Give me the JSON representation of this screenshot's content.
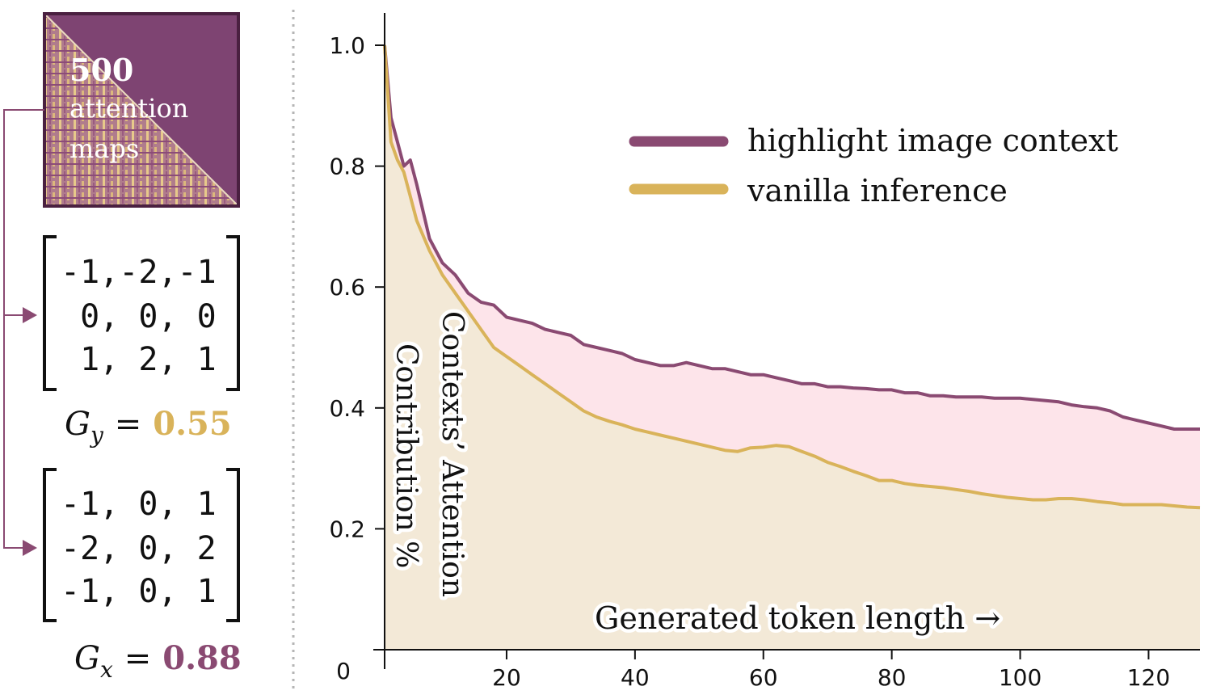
{
  "left_panel": {
    "attention_box": {
      "count": "500",
      "line1": "attention",
      "line2": "maps"
    },
    "kernel_y": {
      "rows": [
        "-1,-2,-1",
        " 0, 0, 0",
        " 1, 2, 1"
      ],
      "label_main": "G",
      "label_sub": "y",
      "equals": "=",
      "value": "0.55"
    },
    "kernel_x": {
      "rows": [
        "-1, 0, 1",
        "-2, 0, 2",
        "-1, 0, 1"
      ],
      "label_main": "G",
      "label_sub": "x",
      "equals": "=",
      "value": "0.88"
    }
  },
  "colors": {
    "purple": "#8a4a72",
    "gold": "#d9b35a",
    "pink_fill": "#fde4ea",
    "beige_fill": "#f3e9d7",
    "box_fill": "#7e4472"
  },
  "chart_data": {
    "type": "area",
    "title": "",
    "ylabel_line1": "Contexts’ Attention",
    "ylabel_line2": "Contribution %",
    "xlabel": "Generated token length →",
    "x_range": [
      1,
      128
    ],
    "ylim": [
      0,
      1.0
    ],
    "x_ticks": [
      20,
      40,
      60,
      80,
      100,
      120
    ],
    "y_ticks": [
      {
        "value": 0,
        "label": "0"
      },
      {
        "value": 0.2,
        "label": "0.2"
      },
      {
        "value": 0.4,
        "label": "0.4"
      },
      {
        "value": 0.6,
        "label": "0.6"
      },
      {
        "value": 0.8,
        "label": "0.8"
      },
      {
        "value": 1.0,
        "label": "1.0"
      }
    ],
    "legend_position": "top-right",
    "grid": false,
    "series": [
      {
        "name": "highlight image context",
        "x": [
          1,
          2,
          3,
          4,
          5,
          6,
          8,
          10,
          12,
          14,
          16,
          18,
          20,
          22,
          24,
          26,
          28,
          30,
          32,
          34,
          36,
          38,
          40,
          42,
          44,
          46,
          48,
          50,
          52,
          54,
          56,
          58,
          60,
          62,
          64,
          66,
          68,
          70,
          72,
          74,
          76,
          78,
          80,
          82,
          84,
          86,
          88,
          90,
          92,
          94,
          96,
          98,
          100,
          102,
          104,
          106,
          108,
          110,
          112,
          114,
          116,
          118,
          120,
          122,
          124,
          126,
          128
        ],
        "values": [
          1.0,
          0.88,
          0.84,
          0.8,
          0.81,
          0.77,
          0.68,
          0.64,
          0.62,
          0.59,
          0.575,
          0.57,
          0.55,
          0.545,
          0.54,
          0.53,
          0.525,
          0.52,
          0.505,
          0.5,
          0.495,
          0.49,
          0.48,
          0.475,
          0.47,
          0.47,
          0.475,
          0.47,
          0.465,
          0.465,
          0.46,
          0.455,
          0.455,
          0.45,
          0.445,
          0.44,
          0.44,
          0.435,
          0.435,
          0.433,
          0.432,
          0.43,
          0.43,
          0.425,
          0.425,
          0.42,
          0.42,
          0.418,
          0.418,
          0.418,
          0.416,
          0.416,
          0.416,
          0.414,
          0.412,
          0.41,
          0.405,
          0.402,
          0.4,
          0.395,
          0.385,
          0.38,
          0.375,
          0.37,
          0.365,
          0.365,
          0.365
        ]
      },
      {
        "name": "vanilla inference",
        "x": [
          1,
          2,
          3,
          4,
          5,
          6,
          8,
          10,
          12,
          14,
          16,
          18,
          20,
          22,
          24,
          26,
          28,
          30,
          32,
          34,
          36,
          38,
          40,
          42,
          44,
          46,
          48,
          50,
          52,
          54,
          56,
          58,
          60,
          62,
          64,
          66,
          68,
          70,
          72,
          74,
          76,
          78,
          80,
          82,
          84,
          86,
          88,
          90,
          92,
          94,
          96,
          98,
          100,
          102,
          104,
          106,
          108,
          110,
          112,
          114,
          116,
          118,
          120,
          122,
          124,
          126,
          128
        ],
        "values": [
          1.0,
          0.84,
          0.81,
          0.79,
          0.75,
          0.71,
          0.66,
          0.62,
          0.59,
          0.56,
          0.53,
          0.5,
          0.485,
          0.47,
          0.455,
          0.44,
          0.425,
          0.41,
          0.395,
          0.385,
          0.378,
          0.372,
          0.365,
          0.36,
          0.355,
          0.35,
          0.345,
          0.34,
          0.335,
          0.33,
          0.328,
          0.334,
          0.335,
          0.338,
          0.336,
          0.328,
          0.32,
          0.31,
          0.303,
          0.295,
          0.288,
          0.28,
          0.28,
          0.275,
          0.272,
          0.27,
          0.268,
          0.265,
          0.262,
          0.258,
          0.255,
          0.252,
          0.25,
          0.248,
          0.248,
          0.25,
          0.25,
          0.248,
          0.245,
          0.243,
          0.24,
          0.24,
          0.24,
          0.24,
          0.238,
          0.236,
          0.235
        ]
      }
    ]
  }
}
